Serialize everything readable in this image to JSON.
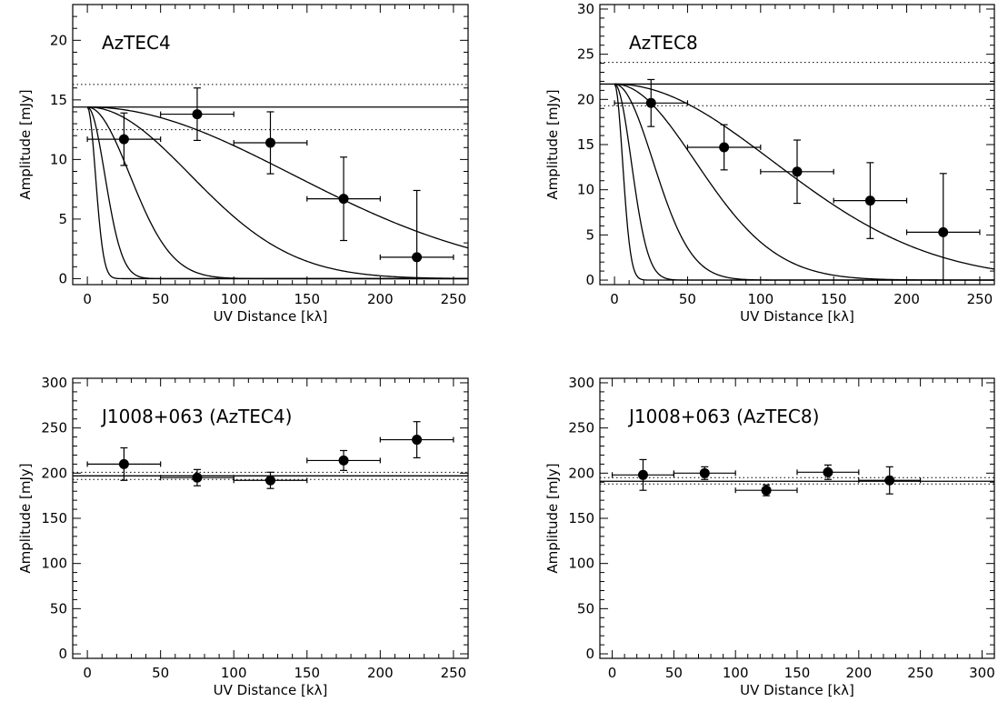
{
  "chart_data": [
    {
      "type": "scatter",
      "title": "AzTEC4",
      "xlabel": "UV Distance [kλ]",
      "ylabel": "Amplitude [mJy]",
      "xlim": [
        -10,
        260
      ],
      "ylim": [
        -0.5,
        23
      ],
      "xticks": [
        0,
        50,
        100,
        150,
        200,
        250
      ],
      "yticks": [
        0,
        5,
        10,
        15,
        20
      ],
      "points": [
        {
          "x": 25,
          "y": 11.7,
          "xerr": 25,
          "yerr": 2.2
        },
        {
          "x": 75,
          "y": 13.8,
          "xerr": 25,
          "yerr": 2.2
        },
        {
          "x": 125,
          "y": 11.4,
          "xerr": 25,
          "yerr": 2.6
        },
        {
          "x": 175,
          "y": 6.7,
          "xerr": 25,
          "yerr": 3.5
        },
        {
          "x": 225,
          "y": 1.8,
          "xerr": 25,
          "yerr": 5.6
        }
      ],
      "flux_level": 14.4,
      "flux_bounds": [
        12.5,
        16.3
      ],
      "gaussian_models": [
        {
          "fwhm_k": 13
        },
        {
          "fwhm_k": 28
        },
        {
          "fwhm_k": 68
        },
        {
          "fwhm_k": 165
        },
        {
          "fwhm_k": 330
        }
      ]
    },
    {
      "type": "scatter",
      "title": "AzTEC8",
      "xlabel": "UV Distance [kλ]",
      "ylabel": "Amplitude [mJy]",
      "xlim": [
        -10,
        260
      ],
      "ylim": [
        -0.5,
        30.5
      ],
      "xticks": [
        0,
        50,
        100,
        150,
        200,
        250
      ],
      "yticks": [
        0,
        5,
        10,
        15,
        20,
        25,
        30
      ],
      "points": [
        {
          "x": 25,
          "y": 19.6,
          "xerr": 25,
          "yerr": 2.6
        },
        {
          "x": 75,
          "y": 14.7,
          "xerr": 25,
          "yerr": 2.5
        },
        {
          "x": 125,
          "y": 12.0,
          "xerr": 25,
          "yerr": 3.5
        },
        {
          "x": 175,
          "y": 8.8,
          "xerr": 25,
          "yerr": 4.2
        },
        {
          "x": 225,
          "y": 5.3,
          "xerr": 25,
          "yerr": 6.5
        }
      ],
      "flux_level": 21.7,
      "flux_bounds": [
        19.3,
        24.1
      ],
      "gaussian_models": [
        {
          "fwhm_k": 13
        },
        {
          "fwhm_k": 27
        },
        {
          "fwhm_k": 62
        },
        {
          "fwhm_k": 130
        },
        {
          "fwhm_k": 255
        }
      ]
    },
    {
      "type": "scatter",
      "title": "J1008+063 (AzTEC4)",
      "xlabel": "UV Distance [kλ]",
      "ylabel": "Amplitude [mJy]",
      "xlim": [
        -10,
        260
      ],
      "ylim": [
        -5,
        305
      ],
      "xticks": [
        0,
        50,
        100,
        150,
        200,
        250
      ],
      "yticks": [
        0,
        50,
        100,
        150,
        200,
        250,
        300
      ],
      "points": [
        {
          "x": 25,
          "y": 210,
          "xerr": 25,
          "yerr": 18
        },
        {
          "x": 75,
          "y": 195,
          "xerr": 25,
          "yerr": 9
        },
        {
          "x": 125,
          "y": 192,
          "xerr": 25,
          "yerr": 9
        },
        {
          "x": 175,
          "y": 214,
          "xerr": 25,
          "yerr": 11
        },
        {
          "x": 225,
          "y": 237,
          "xerr": 25,
          "yerr": 20
        }
      ],
      "flux_level": 197,
      "flux_bounds": [
        193,
        201
      ]
    },
    {
      "type": "scatter",
      "title": "J1008+063 (AzTEC8)",
      "xlabel": "UV Distance [kλ]",
      "ylabel": "Amplitude [mJy]",
      "xlim": [
        -10,
        310
      ],
      "ylim": [
        -5,
        305
      ],
      "xticks": [
        0,
        50,
        100,
        150,
        200,
        250,
        300
      ],
      "yticks": [
        0,
        50,
        100,
        150,
        200,
        250,
        300
      ],
      "points": [
        {
          "x": 25,
          "y": 198,
          "xerr": 25,
          "yerr": 17
        },
        {
          "x": 75,
          "y": 200,
          "xerr": 25,
          "yerr": 7
        },
        {
          "x": 125,
          "y": 181,
          "xerr": 25,
          "yerr": 6
        },
        {
          "x": 175,
          "y": 201,
          "xerr": 25,
          "yerr": 8
        },
        {
          "x": 225,
          "y": 192,
          "xerr": 25,
          "yerr": 15
        }
      ],
      "flux_level": 191,
      "flux_bounds": [
        188,
        195
      ]
    }
  ]
}
